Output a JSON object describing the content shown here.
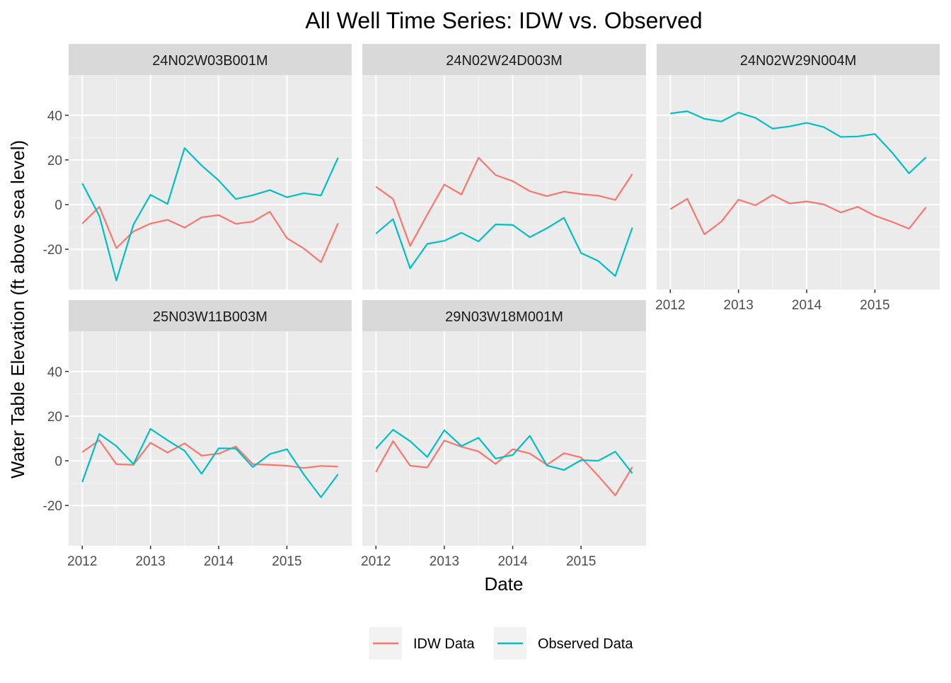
{
  "chart_data": {
    "type": "line",
    "title": "All Well Time Series: IDW vs. Observed",
    "xlabel": "Date",
    "ylabel": "Water Table Elevation (ft above sea level)",
    "x": [
      2012.0,
      2012.25,
      2012.5,
      2012.75,
      2013.0,
      2013.25,
      2013.5,
      2013.75,
      2014.0,
      2014.25,
      2014.5,
      2014.75,
      2015.0,
      2015.25,
      2015.5,
      2015.75
    ],
    "xlim": [
      2011.8,
      2015.95
    ],
    "ylim": [
      -38,
      58
    ],
    "x_ticks": [
      2012,
      2013,
      2014,
      2015
    ],
    "x_tick_labels": [
      "2012",
      "2013",
      "2014",
      "2015"
    ],
    "y_ticks": [
      -20,
      0,
      20,
      40
    ],
    "y_tick_labels": [
      "-20",
      "0",
      "20",
      "40"
    ],
    "grid": true,
    "legend_position": "bottom",
    "series_meta": [
      {
        "name": "IDW Data",
        "color": "#F8766D"
      },
      {
        "name": "Observed Data",
        "color": "#00BFC4"
      }
    ],
    "panels": [
      {
        "label": "24N02W03B001M",
        "idw": [
          -8.5,
          -1,
          -19.5,
          -12,
          -8.5,
          -6.8,
          -10.3,
          -5.7,
          -4.7,
          -8.6,
          -7.6,
          -3.2,
          -15,
          -19.7,
          -25.8,
          -8.3
        ],
        "observed": [
          9.5,
          -5,
          -34,
          -9,
          4.4,
          0.3,
          25.3,
          17.5,
          10.8,
          2.5,
          4.2,
          6.5,
          3.3,
          5.1,
          4.1,
          21
        ]
      },
      {
        "label": "24N02W24D003M",
        "idw": [
          8,
          2.5,
          -18.5,
          -4.5,
          9,
          4.5,
          21,
          13.2,
          10.5,
          6,
          3.8,
          5.8,
          4.7,
          4,
          2.1,
          13.7
        ],
        "observed": [
          -13,
          -6.5,
          -28.5,
          -17.6,
          -16.2,
          -12.6,
          -16.5,
          -8.9,
          -9.1,
          -14.6,
          -10.6,
          -5.9,
          -21.7,
          -25.2,
          -32,
          -10.3
        ]
      },
      {
        "label": "24N02W29N004M",
        "idw": [
          -2,
          2.6,
          -13.3,
          -7.6,
          2.2,
          -0.3,
          4.3,
          0.5,
          1.4,
          0.1,
          -3.5,
          -1,
          -5,
          -7.7,
          -10.8,
          -1.2
        ],
        "observed": [
          40.8,
          41.8,
          38.4,
          37.2,
          41.2,
          38.8,
          34,
          35,
          36.6,
          34.7,
          30.3,
          30.5,
          31.6,
          23.4,
          14,
          21.2
        ]
      },
      {
        "label": "25N03W11B003M",
        "idw": [
          3.9,
          9.2,
          -1.5,
          -1.8,
          8.1,
          3.7,
          7.8,
          2.3,
          3.2,
          6.4,
          -1.5,
          -1.8,
          -2.2,
          -3.2,
          -2.3,
          -2.6
        ],
        "observed": [
          -9.5,
          12,
          6.6,
          -1.5,
          14.3,
          9.2,
          4.5,
          -5.8,
          5.6,
          5.5,
          -2.8,
          3,
          5.2,
          -6.2,
          -16.3,
          -6
        ]
      },
      {
        "label": "29N03W18M001M",
        "idw": [
          -5,
          8.8,
          -2.2,
          -3,
          9.1,
          6.3,
          4.2,
          -1.4,
          5.2,
          3.3,
          -1.8,
          3.4,
          1.5,
          -6.7,
          -15.5,
          -2.8
        ],
        "observed": [
          5.5,
          13.9,
          8.8,
          1.7,
          13.7,
          6.6,
          10.3,
          1,
          2.6,
          11.2,
          -2.1,
          -4.1,
          0.3,
          0,
          4.1,
          -5.6
        ]
      }
    ]
  }
}
